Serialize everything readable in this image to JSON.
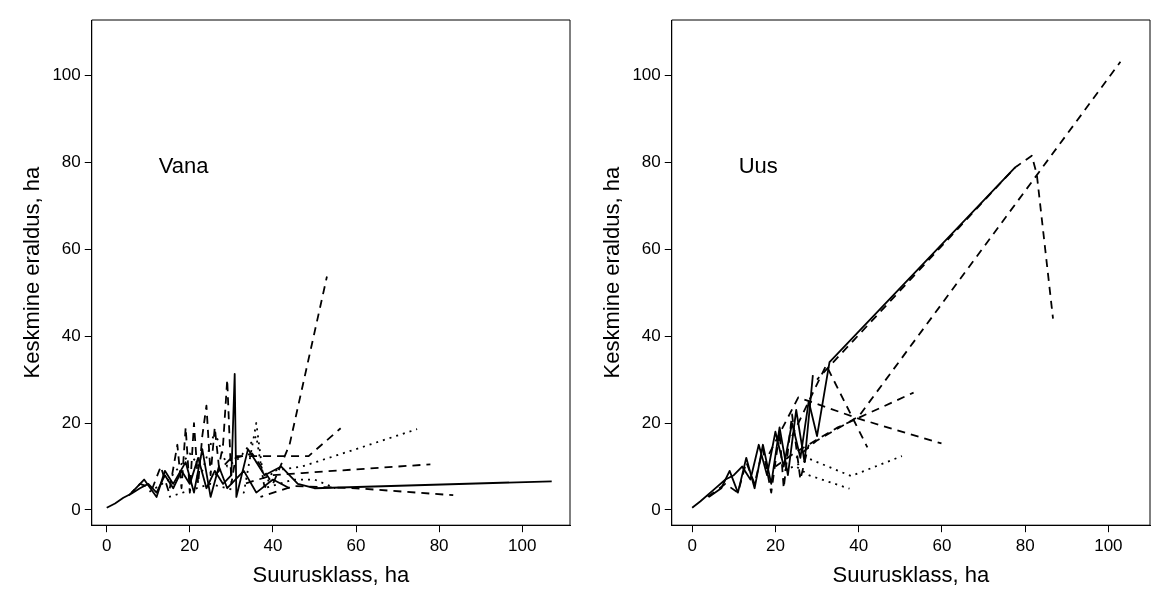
{
  "chart_data": [
    {
      "type": "line",
      "xlabel": "Suurusklass, ha",
      "ylabel": "Keskmine eraldus, ha",
      "annotations": [
        "Vana"
      ],
      "xlim": [
        -3.6,
        111.5
      ],
      "ylim": [
        -3.5,
        112.7
      ],
      "xticks": [
        0,
        20,
        40,
        60,
        80,
        100
      ],
      "yticks": [
        0,
        20,
        40,
        60,
        80,
        100
      ],
      "grid": false,
      "legend": false,
      "marker": "none",
      "series": [
        {
          "color": "#000000",
          "line_style": "solid",
          "x": [
            0,
            2,
            4,
            6,
            8,
            10,
            12,
            14,
            16,
            18,
            20,
            22,
            24,
            26,
            28,
            30,
            30.8,
            31.2,
            34,
            38,
            42,
            46,
            50,
            107.1
          ],
          "values": [
            0.5,
            1.5,
            2.8,
            3.8,
            5,
            6,
            4,
            8,
            5,
            9,
            6,
            12,
            5,
            9,
            6,
            8,
            31.3,
            3,
            14,
            8,
            10,
            6,
            5,
            6.6
          ]
        },
        {
          "color": "#000000",
          "line_style": "dashed",
          "x": [
            5,
            8,
            11,
            13,
            15,
            17,
            18,
            19,
            20,
            21,
            22,
            23,
            24,
            25,
            26,
            27,
            28,
            29,
            30,
            31,
            35,
            40,
            44,
            53
          ],
          "values": [
            3,
            6,
            5,
            10,
            4,
            15,
            5,
            19,
            4,
            20,
            6,
            17,
            24,
            8,
            19,
            10,
            15,
            30,
            6,
            12,
            13,
            6,
            15,
            53.7
          ]
        },
        {
          "color": "#000000",
          "line_style": "dotted",
          "x": [
            10,
            15,
            20,
            23,
            26,
            29,
            32,
            36,
            38,
            40,
            47,
            60,
            74.7
          ],
          "values": [
            4,
            7,
            13,
            9,
            18,
            10,
            12,
            17,
            5,
            9,
            10,
            14,
            18.6
          ]
        },
        {
          "color": "#000000",
          "line_style": "dashed",
          "x": [
            26,
            30.4,
            48.6,
            56.3
          ],
          "values": [
            8,
            12.4,
            12.4,
            18.8
          ]
        },
        {
          "color": "#000000",
          "line_style": "dashed",
          "x": [
            33,
            40,
            47,
            77.9
          ],
          "values": [
            6,
            8,
            8.5,
            10.5
          ]
        },
        {
          "color": "#000000",
          "line_style": "dashed",
          "x": [
            37,
            45,
            60,
            83.4
          ],
          "values": [
            3,
            5.5,
            5,
            3.4
          ]
        },
        {
          "color": "#000000",
          "line_style": "dotted",
          "x": [
            15,
            25,
            33,
            36,
            38,
            45,
            50,
            55
          ],
          "values": [
            3,
            6,
            4,
            20,
            5,
            7,
            7,
            5
          ]
        },
        {
          "color": "#000000",
          "line_style": "solid",
          "x": [
            6,
            9,
            12,
            14,
            16,
            19,
            21,
            23,
            25,
            27,
            29,
            33,
            36,
            40,
            44
          ],
          "values": [
            4,
            7,
            3,
            9,
            6,
            11,
            4,
            14,
            3,
            10,
            5,
            9,
            4,
            7,
            5
          ]
        }
      ]
    },
    {
      "type": "line",
      "xlabel": "Suurusklass, ha",
      "ylabel": "Keskmine eraldus, ha",
      "annotations": [
        "Uus"
      ],
      "xlim": [
        -4.9,
        110
      ],
      "ylim": [
        -3.5,
        112.7
      ],
      "xticks": [
        0,
        20,
        40,
        60,
        80,
        100
      ],
      "yticks": [
        0,
        20,
        40,
        60,
        80,
        100
      ],
      "grid": false,
      "legend": false,
      "marker": "none",
      "series": [
        {
          "color": "#000000",
          "line_style": "solid",
          "x": [
            0,
            2,
            5,
            8,
            10,
            12,
            14,
            16,
            18,
            20,
            22,
            24,
            26,
            28,
            30,
            33,
            77.6
          ],
          "values": [
            0.5,
            2,
            4.5,
            7,
            8,
            10,
            7,
            15,
            8,
            18,
            10,
            20,
            12,
            25,
            17,
            34,
            78.8
          ]
        },
        {
          "color": "#000000",
          "line_style": "dashed",
          "x": [
            25,
            30,
            40,
            102.9
          ],
          "values": [
            12,
            16,
            21.5,
            103.1
          ]
        },
        {
          "color": "#000000",
          "line_style": "dashed",
          "x": [
            30,
            77.6,
            81.6,
            82.8,
            86.7
          ],
          "values": [
            30,
            78.8,
            81.5,
            77.2,
            44
          ]
        },
        {
          "color": "#000000",
          "line_style": "dashed",
          "x": [
            18,
            25.5,
            40,
            59.9
          ],
          "values": [
            12,
            25.9,
            21,
            15.3
          ]
        },
        {
          "color": "#000000",
          "line_style": "dashed",
          "x": [
            24,
            32.2,
            42.1
          ],
          "values": [
            17,
            33.3,
            14.4
          ]
        },
        {
          "color": "#000000",
          "line_style": "dashed",
          "x": [
            20,
            24.7,
            35,
            53.2
          ],
          "values": [
            10,
            13.2,
            19,
            27
          ]
        },
        {
          "color": "#000000",
          "line_style": "dotted",
          "x": [
            22,
            28.3,
            38.2,
            50.4
          ],
          "values": [
            9,
            11.7,
            7.8,
            12.4
          ]
        },
        {
          "color": "#000000",
          "line_style": "dotted",
          "x": [
            25,
            28,
            37.8
          ],
          "values": [
            10,
            8,
            4.9
          ]
        },
        {
          "color": "#000000",
          "line_style": "dashed",
          "x": [
            3,
            8,
            11,
            13,
            15,
            17,
            19,
            21,
            22,
            24,
            26,
            28
          ],
          "values": [
            2.5,
            6,
            4,
            11,
            6,
            14,
            4,
            18,
            5,
            22,
            7,
            15
          ]
        },
        {
          "color": "#000000",
          "line_style": "solid",
          "x": [
            4,
            7,
            9,
            11,
            13,
            15,
            17,
            19,
            21,
            23,
            25,
            27,
            29
          ],
          "values": [
            3,
            5,
            9,
            4,
            12,
            5,
            15,
            6,
            19,
            8,
            23,
            11,
            31
          ]
        }
      ]
    }
  ]
}
